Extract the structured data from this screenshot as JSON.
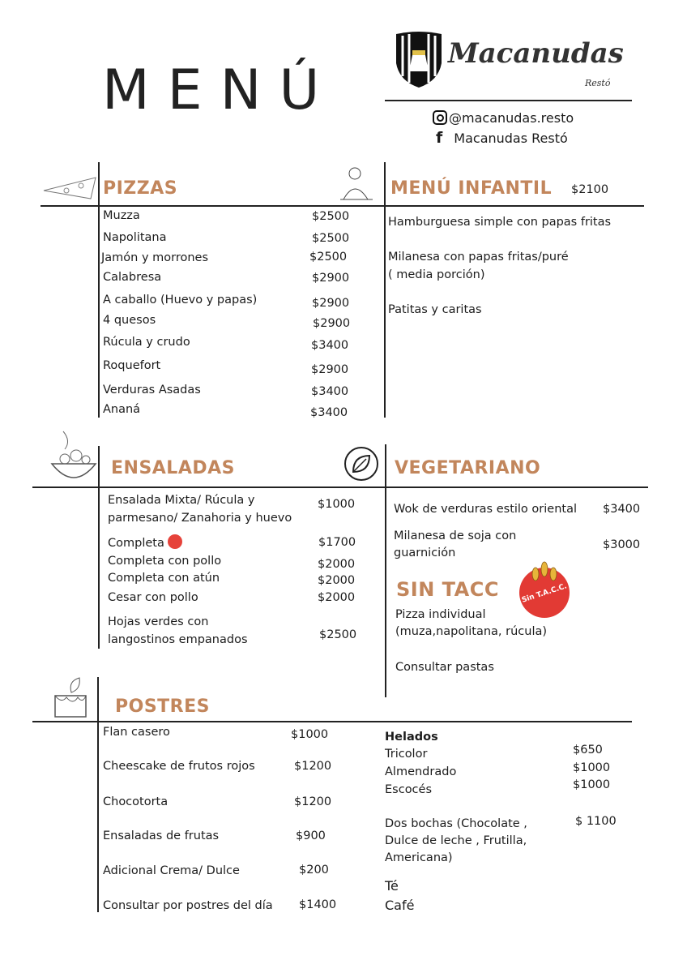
{
  "header": {
    "title": "MENÚ",
    "brand": "Macanudas",
    "brand_sub": "Restó",
    "instagram": "@macanudas.resto",
    "facebook": "Macanudas Restó",
    "accent_color": "#c2865c"
  },
  "pizzas": {
    "title": "PIZZAS",
    "items": [
      {
        "name": "Muzza",
        "price": "$2500"
      },
      {
        "name": "Napolitana",
        "price": "$2500"
      },
      {
        "name": "Jamón y morrones",
        "price": "$2500"
      },
      {
        "name": "Calabresa",
        "price": "$2900"
      },
      {
        "name": "A caballo  (Huevo y papas)",
        "price": "$2900"
      },
      {
        "name": "4 quesos",
        "price": "$2900"
      },
      {
        "name": "Rúcula y crudo",
        "price": "$3400"
      },
      {
        "name": "Roquefort",
        "price": "$2900"
      },
      {
        "name": "Verduras Asadas",
        "price": "$3400"
      },
      {
        "name": "Ananá",
        "price": "$3400"
      }
    ]
  },
  "infantil": {
    "title": "MENÚ INFANTIL",
    "price": "$2100",
    "items": [
      "Hamburguesa simple con papas fritas",
      "Milanesa con papas fritas/puré",
      "( media porción)",
      "Patitas y caritas"
    ]
  },
  "ensaladas": {
    "title": "ENSALADAS",
    "items": [
      {
        "name": "Ensalada Mixta/ Rúcula y",
        "name2": "parmesano/ Zanahoria y huevo",
        "price": "$1000"
      },
      {
        "name": "Completa",
        "price": "$1700"
      },
      {
        "name": "Completa con pollo",
        "price": "$2000"
      },
      {
        "name": "Completa con atún",
        "price": "$2000"
      },
      {
        "name": "Cesar con pollo",
        "price": "$2000"
      },
      {
        "name": "Hojas verdes con",
        "name2": "langostinos empanados",
        "price": "$2500"
      }
    ]
  },
  "vegetariano": {
    "title": "VEGETARIANO",
    "items": [
      {
        "name": "Wok de verduras estilo oriental",
        "price": "$3400"
      },
      {
        "name": "Milanesa de soja con",
        "name2": "guarnición",
        "price": "$3000"
      }
    ]
  },
  "sin_tacc": {
    "title": "SIN  TACC",
    "badge": "Sin T.A.C.C.",
    "items": [
      "Pizza individual",
      "(muza,napolitana, rúcula)",
      "Consultar pastas"
    ]
  },
  "postres": {
    "title": "POSTRES",
    "items": [
      {
        "name": "Flan casero",
        "price": "$1000"
      },
      {
        "name": "Cheescake de frutos rojos",
        "price": "$1200"
      },
      {
        "name": "Chocotorta",
        "price": "$1200"
      },
      {
        "name": "Ensaladas de frutas",
        "price": "$900"
      },
      {
        "name": "Adicional Crema/ Dulce",
        "price": "$200"
      },
      {
        "name": "Consultar por postres del día",
        "price": "$1400"
      }
    ]
  },
  "helados": {
    "title": "Helados",
    "items": [
      {
        "name": "Tricolor",
        "price": "$650"
      },
      {
        "name": "Almendrado",
        "price": "$1000"
      },
      {
        "name": "Escocés",
        "price": "$1000"
      }
    ],
    "dos_bochas": [
      "Dos bochas (Chocolate ,",
      "Dulce de leche , Frutilla,",
      "Americana)"
    ],
    "dos_bochas_price": "$ 1100",
    "extra": [
      "Té",
      "Café"
    ]
  }
}
